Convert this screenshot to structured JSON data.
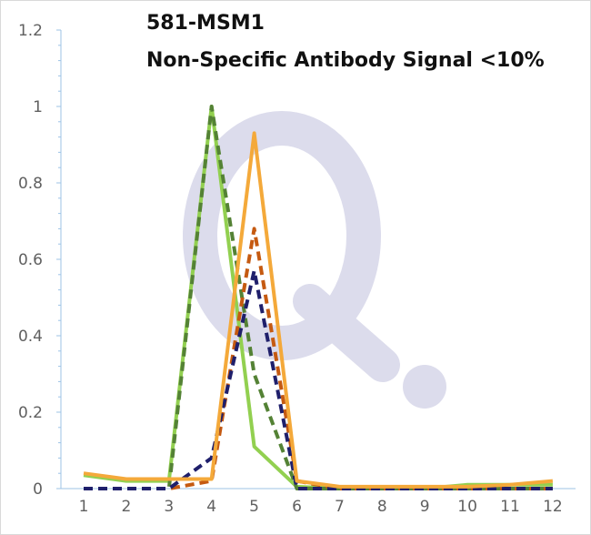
{
  "chart_data": {
    "type": "line",
    "title": "581-MSM1",
    "subtitle": "Non-Specific Antibody Signal <10%",
    "xlabel": "",
    "ylabel": "",
    "x": [
      1,
      2,
      3,
      4,
      5,
      6,
      7,
      8,
      9,
      10,
      11,
      12
    ],
    "ylim": [
      0,
      1.2
    ],
    "y_ticks": [
      "0",
      "0.2",
      "0.4",
      "0.6",
      "0.8",
      "1",
      "1.2"
    ],
    "x_ticks": [
      "1",
      "2",
      "3",
      "4",
      "5",
      "6",
      "7",
      "8",
      "9",
      "10",
      "11",
      "12"
    ],
    "grid": false,
    "legend": "none",
    "watermark": "Q.",
    "series": [
      {
        "style": "solid",
        "color": "#92d050",
        "values": [
          0.035,
          0.02,
          0.02,
          1.0,
          0.11,
          0.005,
          0.0,
          0.0,
          0.0,
          0.01,
          0.01,
          0.01
        ]
      },
      {
        "style": "dashed",
        "color": "#548235",
        "values": [
          0.0,
          0.0,
          0.0,
          1.0,
          0.3,
          0.0,
          0.0,
          0.0,
          0.0,
          0.0,
          0.0,
          0.0
        ]
      },
      {
        "style": "dashed",
        "color": "#c55a11",
        "values": [
          0.0,
          0.0,
          0.0,
          0.02,
          0.68,
          0.02,
          0.0,
          0.0,
          0.0,
          0.0,
          0.0,
          0.0
        ]
      },
      {
        "style": "dashed",
        "color": "#1f1f6b",
        "values": [
          0.0,
          0.0,
          0.0,
          0.08,
          0.57,
          0.0,
          0.0,
          0.0,
          0.0,
          0.0,
          0.0,
          0.0
        ]
      },
      {
        "style": "solid",
        "color": "#f4a93a",
        "values": [
          0.04,
          0.025,
          0.025,
          0.025,
          0.93,
          0.02,
          0.005,
          0.005,
          0.005,
          0.005,
          0.01,
          0.02
        ]
      }
    ]
  }
}
